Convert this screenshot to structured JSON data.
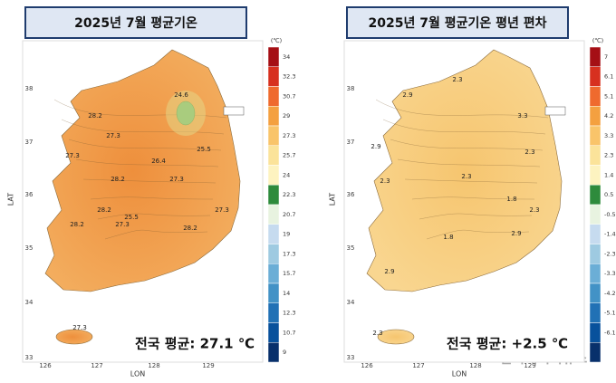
{
  "panels": [
    {
      "title": "2025년 7월 평균기온",
      "unit": "(℃)",
      "colorbar_labels": [
        "34",
        "32.3",
        "30.7",
        "29",
        "27.3",
        "25.7",
        "24",
        "22.3",
        "20.7",
        "19",
        "17.3",
        "15.7",
        "14",
        "12.3",
        "10.7",
        "9"
      ],
      "colorbar_colors": [
        "#a50f15",
        "#d7301f",
        "#ef6a2e",
        "#f4a040",
        "#f9c46a",
        "#fbe39a",
        "#fdf3c0",
        "#2e8b3c",
        "#e8f3e0",
        "#c6dbef",
        "#9ecae1",
        "#6baed6",
        "#4292c6",
        "#2171b5",
        "#08519c",
        "#08306b"
      ],
      "fill": "#f0a24e",
      "lat_ticks": [
        "38",
        "37",
        "36",
        "35",
        "34",
        "33"
      ],
      "lon_ticks": [
        "126",
        "127",
        "128",
        "129"
      ],
      "x_label": "LON",
      "y_label": "LAT",
      "contour_labels": [
        "28.2",
        "24.6",
        "27.3",
        "27.3",
        "26.4",
        "25.5",
        "28.2",
        "27.3",
        "28.2",
        "25.5",
        "27.3",
        "27.3",
        "28.2",
        "28.2",
        "27.3"
      ],
      "summary": "전국 평균: 27.1 ℃"
    },
    {
      "title": "2025년 7월 평균기온 평년 편차",
      "unit": "(℃)",
      "colorbar_labels": [
        "7",
        "6.1",
        "5.1",
        "4.2",
        "3.3",
        "2.3",
        "1.4",
        "0.5",
        "-0.5",
        "-1.4",
        "-2.3",
        "-3.3",
        "-4.2",
        "-5.1",
        "-6.1"
      ],
      "colorbar_colors": [
        "#a50f15",
        "#d7301f",
        "#ef6a2e",
        "#f4a040",
        "#f9c46a",
        "#fbe39a",
        "#fdf3c0",
        "#2e8b3c",
        "#e8f3e0",
        "#c6dbef",
        "#9ecae1",
        "#6baed6",
        "#4292c6",
        "#2171b5",
        "#08519c",
        "#08306b"
      ],
      "fill": "#f8cf82",
      "lat_ticks": [
        "38",
        "37",
        "36",
        "35",
        "34",
        "33"
      ],
      "lon_ticks": [
        "126",
        "127",
        "128",
        "129"
      ],
      "x_label": "LON",
      "y_label": "LAT",
      "contour_labels": [
        "2.9",
        "2.3",
        "3.3",
        "2.9",
        "2.3",
        "2.3",
        "1.8",
        "2.3",
        "2.9",
        "1.8",
        "2.9",
        "2.3",
        "2.3"
      ],
      "summary": "전국 평균: +2.5 ℃"
    }
  ],
  "watermark": "한국에너지뉴스"
}
